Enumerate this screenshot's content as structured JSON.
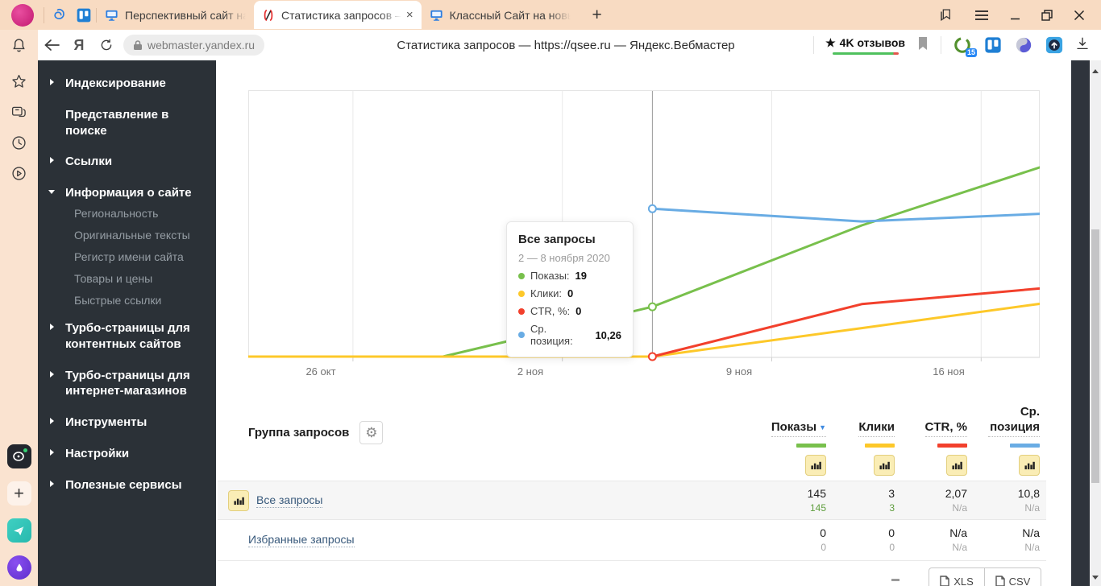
{
  "browser": {
    "tabs": [
      {
        "title": "Перспективный сайт на с"
      },
      {
        "title": "Статистика запросов –",
        "close": "×"
      },
      {
        "title": "Классный Сайт на новых"
      }
    ],
    "new_tab_label": "+",
    "toolbar": {
      "url": "webmaster.yandex.ru",
      "page_title": "Статистика запросов — https://qsee.ru — Яндекс.Вебмастер",
      "reviews_star": "★",
      "reviews_label": "4K отзывов",
      "extension_badge": "15"
    }
  },
  "sidebar": {
    "items": [
      {
        "label": "Индексирование"
      },
      {
        "label": "Представление в поиске"
      },
      {
        "label": "Ссылки"
      },
      {
        "label": "Информация о сайте"
      },
      {
        "label": "Турбо-страницы для контентных сайтов"
      },
      {
        "label": "Турбо-страницы для интернет-магазинов"
      },
      {
        "label": "Инструменты"
      },
      {
        "label": "Настройки"
      },
      {
        "label": "Полезные сервисы"
      }
    ],
    "site_info_children": [
      {
        "label": "Региональность"
      },
      {
        "label": "Оригинальные тексты"
      },
      {
        "label": "Регистр имени сайта"
      },
      {
        "label": "Товары и цены"
      },
      {
        "label": "Быстрые ссылки"
      }
    ]
  },
  "chart_data": {
    "type": "line",
    "x_ticks": [
      {
        "label": "26 окт"
      },
      {
        "label": "2 ноя"
      },
      {
        "label": "9 ноя"
      },
      {
        "label": "16 ноя"
      }
    ],
    "tick_x": [
      1,
      2,
      3,
      4
    ],
    "hover_x": 2.43,
    "series": [
      {
        "name": "Показы",
        "color": "#78c04c",
        "ymax": 100,
        "inverted": false,
        "points": [
          [
            0.5,
            0
          ],
          [
            1.43,
            0
          ],
          [
            2.43,
            19
          ],
          [
            3.43,
            50
          ],
          [
            4.43,
            76
          ]
        ]
      },
      {
        "name": "Клики",
        "color": "#fdc829",
        "ymax": 9.2,
        "inverted": false,
        "points": [
          [
            0.5,
            0
          ],
          [
            2.43,
            0
          ],
          [
            3.43,
            1
          ],
          [
            4.43,
            2
          ]
        ]
      },
      {
        "name": "CTR, %",
        "color": "#f2402c",
        "ymax": 10,
        "inverted": false,
        "points": [
          [
            2.43,
            0
          ],
          [
            3.43,
            2.0
          ],
          [
            4.43,
            2.7
          ]
        ]
      },
      {
        "name": "Ср. позиция",
        "color": "#69ace4",
        "ymax": 23.5,
        "inverted": true,
        "points": [
          [
            2.43,
            10.26
          ],
          [
            3.43,
            11.4
          ],
          [
            4.43,
            10.6
          ]
        ]
      }
    ],
    "markers": [
      {
        "series": 3,
        "x": 2.43,
        "v": 10.26
      },
      {
        "series": 0,
        "x": 2.43,
        "v": 19
      },
      {
        "series": 2,
        "x": 2.43,
        "v": 0
      }
    ]
  },
  "tooltip": {
    "title": "Все запросы",
    "date_range": "2 — 8 ноября 2020",
    "items": [
      {
        "label": "Показы:",
        "value": "19",
        "color": "#78c04c"
      },
      {
        "label": "Клики:",
        "value": "0",
        "color": "#fdc829"
      },
      {
        "label": "CTR, %:",
        "value": "0",
        "color": "#f2402c"
      },
      {
        "label": "Ср. позиция:",
        "value": "10,26",
        "color": "#69ace4"
      }
    ]
  },
  "table": {
    "group_header": "Группа запросов",
    "columns": [
      {
        "label": "Показы",
        "color": "#78c04c",
        "sorted": true
      },
      {
        "label": "Клики",
        "color": "#fdc829",
        "sorted": false
      },
      {
        "label": "CTR, %",
        "color": "#f2402c",
        "sorted": false
      },
      {
        "label": "Ср. позиция",
        "color": "#69ace4",
        "sorted": false
      }
    ],
    "rows": [
      {
        "name": "Все запросы",
        "values": [
          {
            "main": "145",
            "sub": "145"
          },
          {
            "main": "3",
            "sub": "3"
          },
          {
            "main": "2,07",
            "sub": "N/a"
          },
          {
            "main": "10,8",
            "sub": "N/a"
          }
        ]
      },
      {
        "name": "Избранные запросы",
        "values": [
          {
            "main": "0",
            "sub": "0"
          },
          {
            "main": "0",
            "sub": "0"
          },
          {
            "main": "N/a",
            "sub": "N/a"
          },
          {
            "main": "N/a",
            "sub": "N/a"
          }
        ]
      }
    ]
  },
  "export": {
    "xls_label": "XLS",
    "csv_label": "CSV"
  }
}
